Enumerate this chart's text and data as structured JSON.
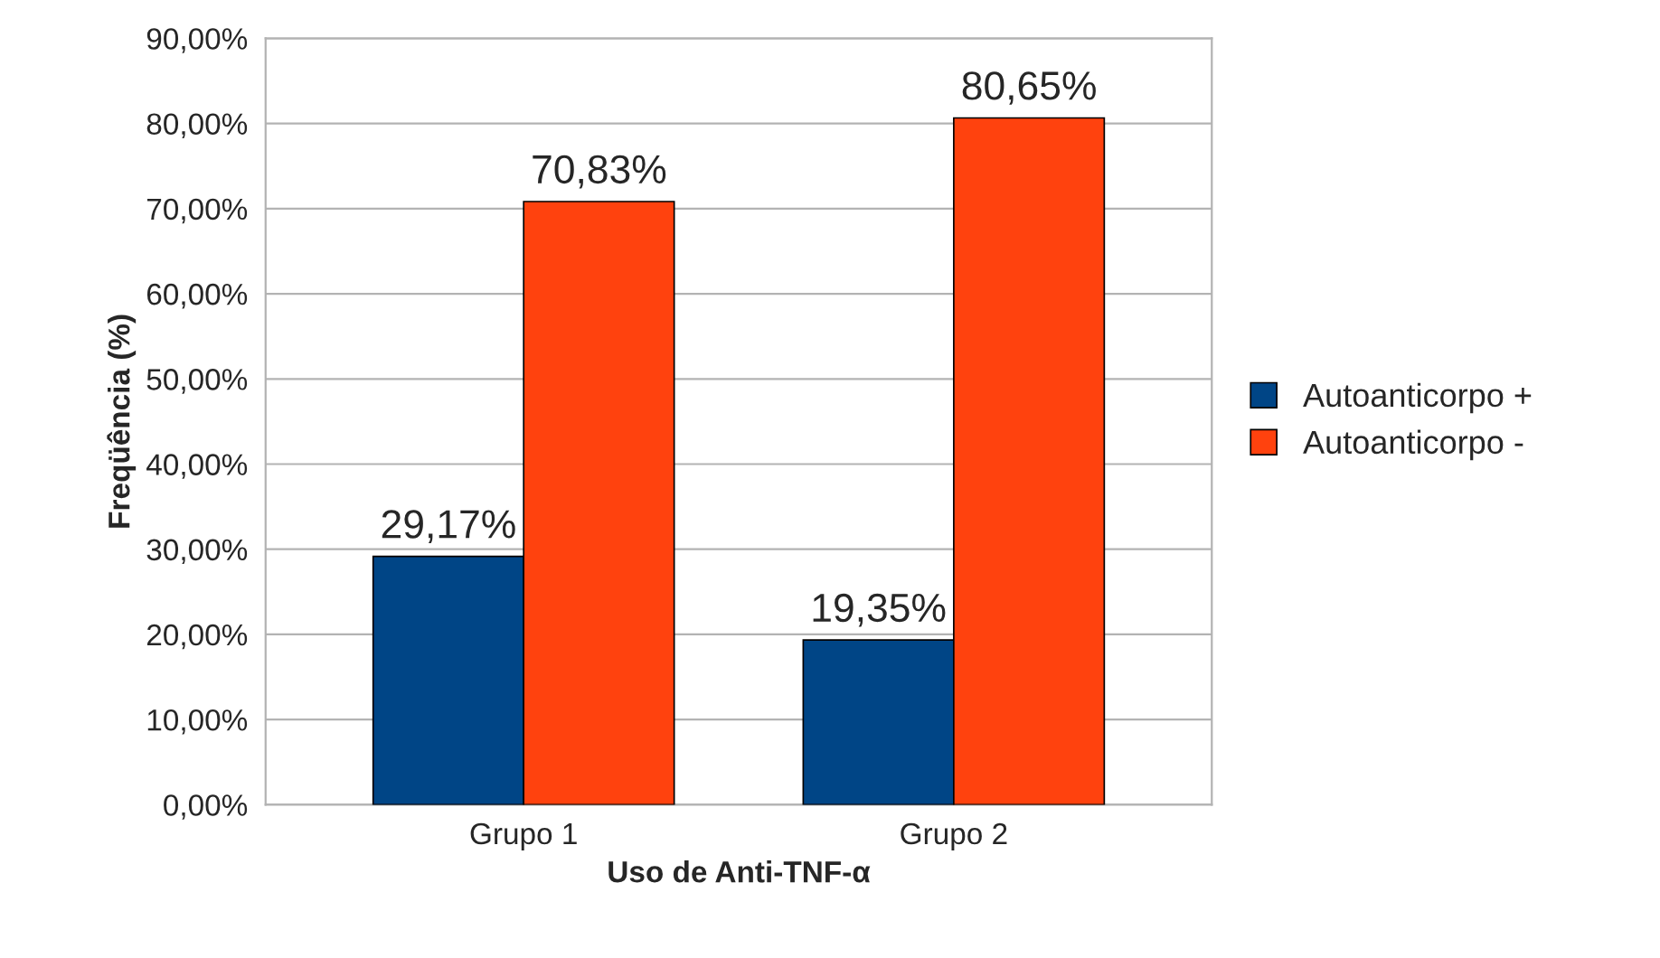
{
  "chart_data": {
    "type": "bar",
    "xlabel": "Uso de Anti-TNF-α",
    "ylabel": "Freqüência (%)",
    "categories": [
      "Grupo 1",
      "Grupo 2"
    ],
    "series": [
      {
        "name": "Autoanticorpo +",
        "color": "#004586",
        "values": [
          29.17,
          19.35
        ],
        "value_labels": [
          "29,17%",
          "19,35%"
        ]
      },
      {
        "name": "Autoanticorpo -",
        "color": "#ff420e",
        "values": [
          70.83,
          80.65
        ],
        "value_labels": [
          "70,83%",
          "80,65%"
        ]
      }
    ],
    "ylim": [
      0,
      90
    ],
    "yticks": [
      {
        "value": 0,
        "label": "0,00%"
      },
      {
        "value": 10,
        "label": "10,00%"
      },
      {
        "value": 20,
        "label": "20,00%"
      },
      {
        "value": 30,
        "label": "30,00%"
      },
      {
        "value": 40,
        "label": "40,00%"
      },
      {
        "value": 50,
        "label": "50,00%"
      },
      {
        "value": 60,
        "label": "60,00%"
      },
      {
        "value": 70,
        "label": "70,00%"
      },
      {
        "value": 80,
        "label": "80,00%"
      },
      {
        "value": 90,
        "label": "90,00%"
      }
    ],
    "grid": "y",
    "legend": "right"
  }
}
